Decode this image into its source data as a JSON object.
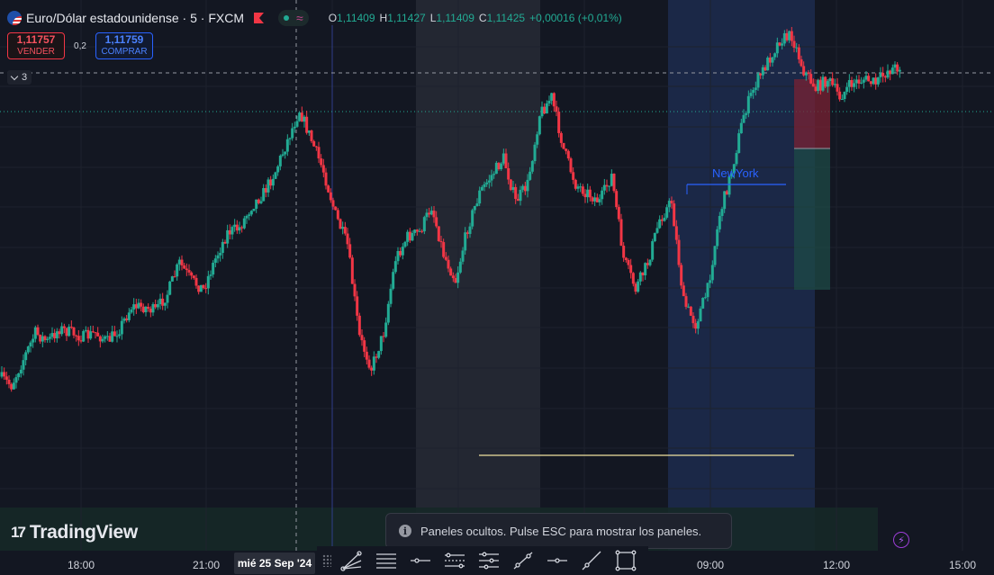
{
  "symbol": {
    "title": "Euro/Dólar estadounidense · 5 · FXCM",
    "flag_icon": "eu-us-flag-icon",
    "marker_color": "#f23645"
  },
  "ohlc": [
    {
      "k": "O",
      "v": "1,11409"
    },
    {
      "k": "H",
      "v": "1,11427"
    },
    {
      "k": "L",
      "v": "1,11409"
    },
    {
      "k": "C",
      "v": "1,11425"
    },
    {
      "k": "",
      "v": "+0,00016 (+0,01%)"
    }
  ],
  "trading": {
    "sell_price": "1,11757",
    "sell_label": "VENDER",
    "spread": "0,2",
    "buy_price": "1,11759",
    "buy_label": "COMPRAR"
  },
  "indicators": {
    "count": "3"
  },
  "chart_data": {
    "type": "candlestick",
    "bullish_color": "#22ab94",
    "bearish_color": "#f23645",
    "annotation": "NewYork",
    "x_ticks": [
      "18:00",
      "21:00",
      "mié 25 Sep '24",
      "09:00",
      "12:00",
      "15:00"
    ],
    "price_path": [
      0.82,
      0.84,
      0.78,
      0.72,
      0.74,
      0.71,
      0.72,
      0.73,
      0.72,
      0.74,
      0.71,
      0.66,
      0.66,
      0.67,
      0.63,
      0.56,
      0.6,
      0.62,
      0.55,
      0.49,
      0.48,
      0.43,
      0.4,
      0.35,
      0.28,
      0.21,
      0.28,
      0.35,
      0.45,
      0.52,
      0.73,
      0.8,
      0.72,
      0.55,
      0.5,
      0.49,
      0.43,
      0.54,
      0.6,
      0.48,
      0.4,
      0.36,
      0.32,
      0.42,
      0.38,
      0.22,
      0.18,
      0.3,
      0.38,
      0.4,
      0.42,
      0.36,
      0.55,
      0.62,
      0.56,
      0.46,
      0.42,
      0.65,
      0.7,
      0.62,
      0.45,
      0.35,
      0.22,
      0.15,
      0.1,
      0.05,
      0.04,
      0.12,
      0.16,
      0.14,
      0.18,
      0.15,
      0.14,
      0.15,
      0.12,
      0.11
    ]
  },
  "toast": {
    "text": "Paneles ocultos. Pulse ESC para mostrar los paneles."
  },
  "brand": {
    "name": "TradingView"
  },
  "toolbar": {
    "tools": [
      "trend-line-fan-icon",
      "horizontal-lines-icon",
      "horizontal-ray-icon",
      "parallel-channel-icon",
      "pitchfork-icon",
      "trend-line-icon",
      "cross-line-icon",
      "ray-icon",
      "rectangle-icon"
    ]
  }
}
